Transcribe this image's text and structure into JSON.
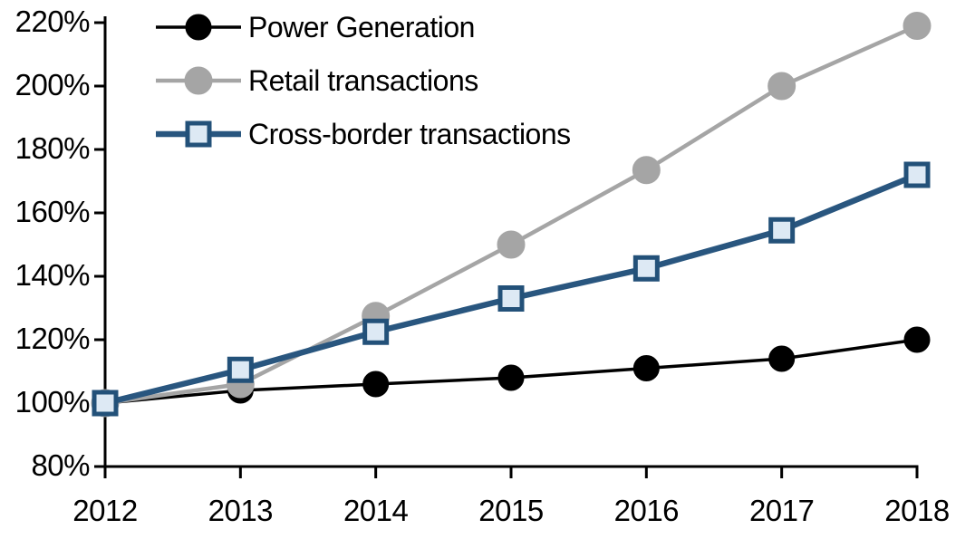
{
  "chart_data": {
    "type": "line",
    "title": "",
    "xlabel": "",
    "ylabel": "",
    "categories": [
      "2012",
      "2013",
      "2014",
      "2015",
      "2016",
      "2017",
      "2018"
    ],
    "series": [
      {
        "name": "Power Generation",
        "values": [
          100,
          104,
          106,
          108,
          111,
          114,
          120
        ],
        "color": "#000000",
        "marker": "circle",
        "marker_fill": "#000000",
        "marker_stroke": "#000000"
      },
      {
        "name": "Retail transactions",
        "values": [
          100,
          106,
          127.5,
          150,
          173.5,
          200,
          219
        ],
        "color": "#A5A5A5",
        "marker": "circle",
        "marker_fill": "#A5A5A5",
        "marker_stroke": "#A5A5A5"
      },
      {
        "name": "Cross-border transactions",
        "values": [
          100,
          110.5,
          122.5,
          133,
          142.5,
          154.5,
          172
        ],
        "color": "#29567F",
        "marker": "square",
        "marker_fill": "#DDE9F4",
        "marker_stroke": "#235179"
      }
    ],
    "ylim": [
      80,
      220
    ],
    "y_tick_step": 20,
    "y_tick_labels": [
      "80%",
      "100%",
      "120%",
      "140%",
      "160%",
      "180%",
      "200%",
      "220%"
    ],
    "y_tick_format": "percent",
    "grid": false,
    "legend_position": "top-left",
    "axis_color": "#000000",
    "background_color": "#FFFFFF"
  }
}
